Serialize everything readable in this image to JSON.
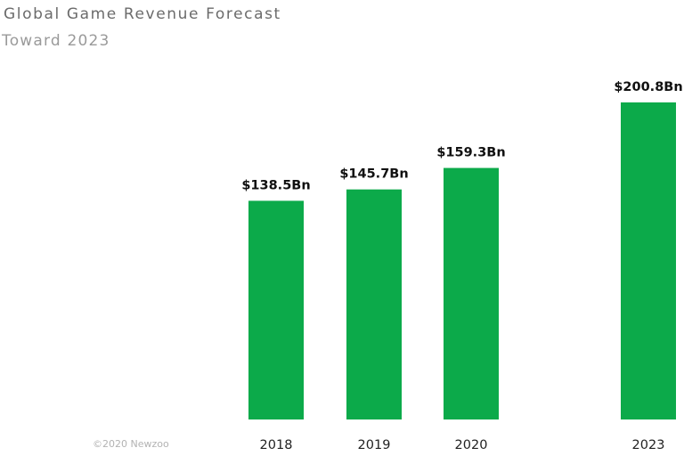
{
  "title": "Global Game Revenue Forecast",
  "subtitle": "Toward 2023",
  "copyright": "©2020 Newzoo",
  "colors": {
    "bar": "#0caa4a"
  },
  "chart_data": {
    "type": "bar",
    "title": "Global Game Revenue Forecast",
    "subtitle": "Toward 2023",
    "categories": [
      "2018",
      "2019",
      "2020",
      "2023"
    ],
    "values": [
      138.5,
      145.7,
      159.3,
      200.8
    ],
    "data_labels": [
      "$138.5Bn",
      "$145.7Bn",
      "$159.3Bn",
      "$200.8Bn"
    ],
    "xlabel": "",
    "ylabel": "",
    "ylim": [
      0,
      200.8
    ],
    "grid": false,
    "legend": "none"
  }
}
